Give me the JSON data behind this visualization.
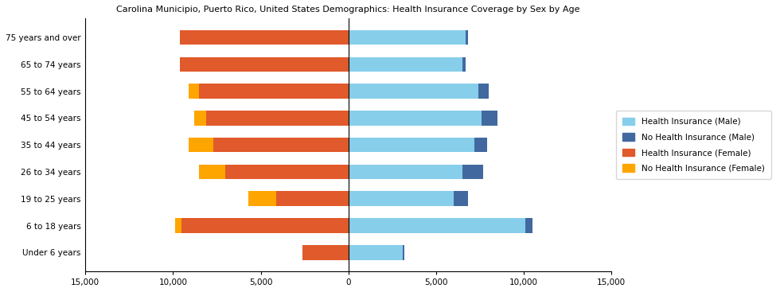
{
  "title": "Carolina Municipio, Puerto Rico, United States Demographics: Health Insurance Coverage by Sex by Age",
  "categories": [
    "Under 6 years",
    "6 to 18 years",
    "19 to 25 years",
    "26 to 34 years",
    "35 to 44 years",
    "45 to 54 years",
    "55 to 64 years",
    "65 to 74 years",
    "75 years and over"
  ],
  "health_ins_male": [
    3100,
    10100,
    6000,
    6500,
    7200,
    7600,
    7400,
    6500,
    6700
  ],
  "no_health_ins_male": [
    100,
    400,
    800,
    1200,
    700,
    900,
    600,
    200,
    100
  ],
  "health_ins_female": [
    2600,
    9500,
    4100,
    7000,
    7700,
    8100,
    8500,
    9600,
    9600
  ],
  "no_health_ins_female": [
    0,
    400,
    1600,
    1500,
    1400,
    700,
    600,
    0,
    0
  ],
  "color_health_ins_male": "#87CEEB",
  "color_no_health_ins_male": "#4169A0",
  "color_health_ins_female": "#E05A2B",
  "color_no_health_ins_female": "#FFA500",
  "xlim": 15000,
  "ticks": [
    -15000,
    -10000,
    -5000,
    0,
    5000,
    10000,
    15000
  ]
}
